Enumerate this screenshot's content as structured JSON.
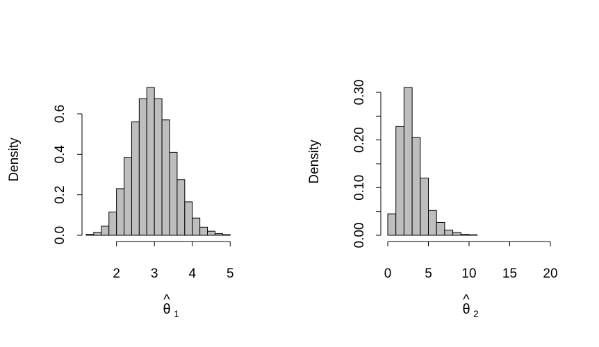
{
  "chart_data": [
    {
      "type": "histogram",
      "ylabel": "Density",
      "xlabel": {
        "main": "θ",
        "hat": "^",
        "sub": "1"
      },
      "xlim": [
        1.2,
        5.6
      ],
      "ylim": [
        0,
        0.6
      ],
      "xticks": [
        2,
        3,
        4,
        5
      ],
      "xtick_labels": [
        "2",
        "3",
        "4",
        "5"
      ],
      "yticks": [
        0.0,
        0.2,
        0.4,
        0.6
      ],
      "ytick_labels": [
        "0.0",
        "0.2",
        "0.4",
        "0.6"
      ],
      "bin_width": 0.2,
      "bins": [
        {
          "x0": 1.2,
          "x1": 1.4,
          "density": 0.005
        },
        {
          "x0": 1.4,
          "x1": 1.6,
          "density": 0.015
        },
        {
          "x0": 1.6,
          "x1": 1.8,
          "density": 0.045
        },
        {
          "x0": 1.8,
          "x1": 2.0,
          "density": 0.115
        },
        {
          "x0": 2.0,
          "x1": 2.2,
          "density": 0.23
        },
        {
          "x0": 2.2,
          "x1": 2.4,
          "density": 0.385
        },
        {
          "x0": 2.4,
          "x1": 2.6,
          "density": 0.56
        },
        {
          "x0": 2.6,
          "x1": 2.8,
          "density": 0.675
        },
        {
          "x0": 2.8,
          "x1": 3.0,
          "density": 0.73
        },
        {
          "x0": 3.0,
          "x1": 3.2,
          "density": 0.675
        },
        {
          "x0": 3.2,
          "x1": 3.4,
          "density": 0.57
        },
        {
          "x0": 3.4,
          "x1": 3.6,
          "density": 0.41
        },
        {
          "x0": 3.6,
          "x1": 3.8,
          "density": 0.275
        },
        {
          "x0": 3.8,
          "x1": 4.0,
          "density": 0.165
        },
        {
          "x0": 4.0,
          "x1": 4.2,
          "density": 0.085
        },
        {
          "x0": 4.2,
          "x1": 4.4,
          "density": 0.04
        },
        {
          "x0": 4.4,
          "x1": 4.6,
          "density": 0.02
        },
        {
          "x0": 4.6,
          "x1": 4.8,
          "density": 0.008
        },
        {
          "x0": 4.8,
          "x1": 5.0,
          "density": 0.003
        }
      ]
    },
    {
      "type": "histogram",
      "ylabel": "Density",
      "xlabel": {
        "main": "θ",
        "hat": "^",
        "sub": "2"
      },
      "xlim": [
        0,
        20
      ],
      "ylim": [
        0,
        0.3
      ],
      "xticks": [
        0,
        5,
        10,
        15,
        20
      ],
      "xtick_labels": [
        "0",
        "5",
        "10",
        "15",
        "20"
      ],
      "yticks": [
        0.0,
        0.05,
        0.1,
        0.15,
        0.2,
        0.25,
        0.3
      ],
      "ytick_labels": [
        "0.00",
        "",
        "0.10",
        "",
        "0.20",
        "",
        "0.30"
      ],
      "bin_width": 1,
      "bins": [
        {
          "x0": 0,
          "x1": 1,
          "density": 0.045
        },
        {
          "x0": 1,
          "x1": 2,
          "density": 0.228
        },
        {
          "x0": 2,
          "x1": 3,
          "density": 0.31
        },
        {
          "x0": 3,
          "x1": 4,
          "density": 0.205
        },
        {
          "x0": 4,
          "x1": 5,
          "density": 0.12
        },
        {
          "x0": 5,
          "x1": 6,
          "density": 0.052
        },
        {
          "x0": 6,
          "x1": 7,
          "density": 0.027
        },
        {
          "x0": 7,
          "x1": 8,
          "density": 0.011
        },
        {
          "x0": 8,
          "x1": 9,
          "density": 0.006
        },
        {
          "x0": 9,
          "x1": 10,
          "density": 0.002
        },
        {
          "x0": 10,
          "x1": 11,
          "density": 0.001
        },
        {
          "x0": 11,
          "x1": 12,
          "density": 0
        },
        {
          "x0": 12,
          "x1": 13,
          "density": 0
        },
        {
          "x0": 13,
          "x1": 14,
          "density": 0
        },
        {
          "x0": 14,
          "x1": 15,
          "density": 0
        },
        {
          "x0": 15,
          "x1": 16,
          "density": 0
        },
        {
          "x0": 16,
          "x1": 17,
          "density": 0
        },
        {
          "x0": 17,
          "x1": 18,
          "density": 0
        },
        {
          "x0": 18,
          "x1": 19,
          "density": 0
        },
        {
          "x0": 19,
          "x1": 20,
          "density": 0
        }
      ]
    }
  ]
}
